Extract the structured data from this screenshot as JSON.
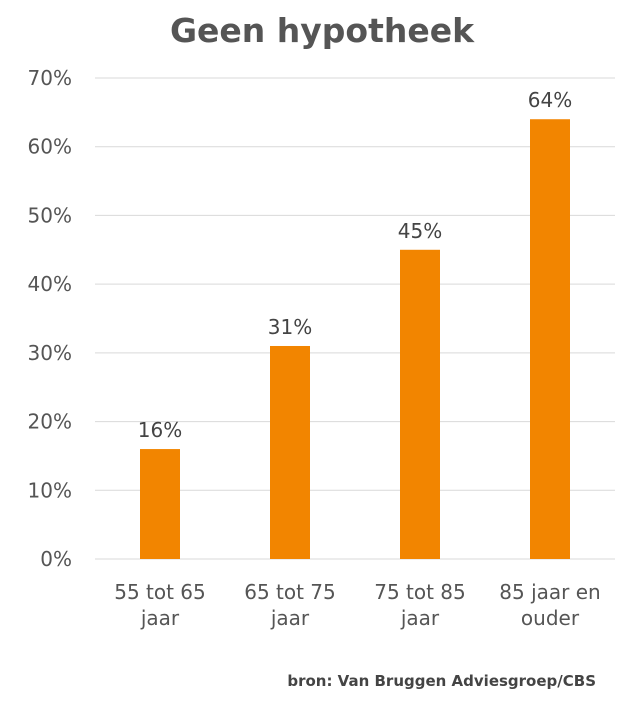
{
  "chart_data": {
    "type": "bar",
    "title": "Geen hypotheek",
    "categories": [
      [
        "55 tot 65",
        "jaar"
      ],
      [
        "65 tot 75",
        "jaar"
      ],
      [
        "75 tot 85",
        "jaar"
      ],
      [
        "85 jaar en",
        "ouder"
      ]
    ],
    "values": [
      16,
      31,
      45,
      64
    ],
    "data_labels": [
      "16%",
      "31%",
      "45%",
      "64%"
    ],
    "y_ticks": [
      "0%",
      "10%",
      "20%",
      "30%",
      "40%",
      "50%",
      "60%",
      "70%"
    ],
    "ylim": [
      0,
      70
    ],
    "grid": true,
    "bar_color": "#F28500"
  },
  "source": "bron: Van Bruggen Adviesgroep/CBS"
}
